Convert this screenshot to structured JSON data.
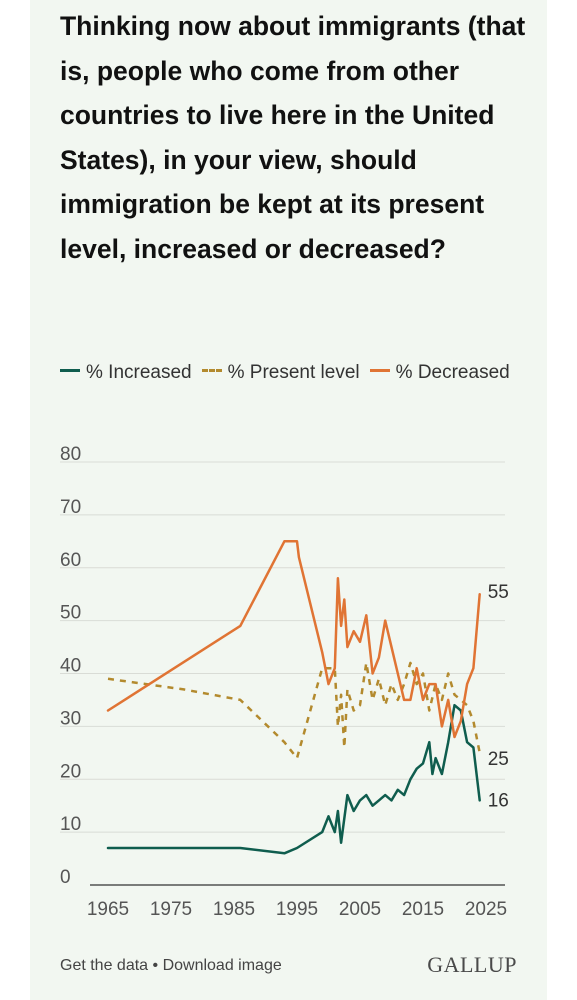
{
  "title": "Thinking now about immigrants (that is, people who come from other countries to live here in the United States), in your view, should immigration be kept at its present level, increased or decreased?",
  "legend": {
    "increased": "% Increased",
    "present": "% Present level",
    "decreased": "% Decreased"
  },
  "footer": {
    "get_data": "Get the data",
    "separator": " • ",
    "download": "Download image",
    "logo": "GALLUP"
  },
  "colors": {
    "increased": "#0f5d4e",
    "present": "#b38a2e",
    "decreased": "#e07434",
    "grid": "#d9dcd6",
    "axis_text": "#555555"
  },
  "chart_data": {
    "type": "line",
    "title": "Thinking now about immigrants (that is, people who come from other countries to live here in the United States), in your view, should immigration be kept at its present level, increased or decreased?",
    "xlabel": "",
    "ylabel": "",
    "xlim": [
      1965,
      2025
    ],
    "ylim": [
      0,
      80
    ],
    "x_ticks": [
      1965,
      1975,
      1985,
      1995,
      2005,
      2015,
      2025
    ],
    "y_ticks": [
      0,
      10,
      20,
      30,
      40,
      50,
      60,
      70,
      80
    ],
    "grid": true,
    "legend_position": "top",
    "end_labels": {
      "decreased": "55",
      "present": "25",
      "increased": "16"
    },
    "series": [
      {
        "name": "% Increased",
        "key": "increased",
        "style": "solid",
        "points": [
          [
            1965,
            7
          ],
          [
            1977,
            7
          ],
          [
            1986,
            7
          ],
          [
            1993,
            6
          ],
          [
            1995,
            7
          ],
          [
            1999,
            10
          ],
          [
            2000,
            13
          ],
          [
            2001,
            10
          ],
          [
            2001.5,
            14
          ],
          [
            2002,
            8
          ],
          [
            2003,
            17
          ],
          [
            2004,
            14
          ],
          [
            2005,
            16
          ],
          [
            2006,
            17
          ],
          [
            2007,
            15
          ],
          [
            2008,
            16
          ],
          [
            2009,
            17
          ],
          [
            2010,
            16
          ],
          [
            2011,
            18
          ],
          [
            2012,
            17
          ],
          [
            2013,
            20
          ],
          [
            2014,
            22
          ],
          [
            2015,
            23
          ],
          [
            2016,
            27
          ],
          [
            2016.5,
            21
          ],
          [
            2017,
            24
          ],
          [
            2018,
            21
          ],
          [
            2019,
            27
          ],
          [
            2020,
            34
          ],
          [
            2021,
            33
          ],
          [
            2022,
            27
          ],
          [
            2023,
            26
          ],
          [
            2024,
            16
          ]
        ]
      },
      {
        "name": "% Present level",
        "key": "present",
        "style": "dashed",
        "points": [
          [
            1965,
            39
          ],
          [
            1977,
            37
          ],
          [
            1986,
            35
          ],
          [
            1993,
            27
          ],
          [
            1995,
            24
          ],
          [
            1999,
            41
          ],
          [
            2000,
            41
          ],
          [
            2001,
            41
          ],
          [
            2001.5,
            30
          ],
          [
            2002,
            36
          ],
          [
            2002.5,
            26
          ],
          [
            2003,
            37
          ],
          [
            2004,
            33
          ],
          [
            2005,
            34
          ],
          [
            2006,
            42
          ],
          [
            2007,
            35
          ],
          [
            2008,
            39
          ],
          [
            2009,
            34
          ],
          [
            2010,
            38
          ],
          [
            2011,
            35
          ],
          [
            2012,
            38
          ],
          [
            2013,
            42
          ],
          [
            2014,
            38
          ],
          [
            2015,
            40
          ],
          [
            2016,
            33
          ],
          [
            2017,
            38
          ],
          [
            2018,
            35
          ],
          [
            2019,
            40
          ],
          [
            2020,
            36
          ],
          [
            2021,
            35
          ],
          [
            2022,
            34
          ],
          [
            2023,
            31
          ],
          [
            2024,
            25
          ]
        ]
      },
      {
        "name": "% Decreased",
        "key": "decreased",
        "style": "solid",
        "points": [
          [
            1965,
            33
          ],
          [
            1986,
            49
          ],
          [
            1993,
            65
          ],
          [
            1995,
            65
          ],
          [
            1995.3,
            62
          ],
          [
            1999,
            44
          ],
          [
            2000,
            38
          ],
          [
            2001,
            41
          ],
          [
            2001.5,
            58
          ],
          [
            2002,
            49
          ],
          [
            2002.5,
            54
          ],
          [
            2003,
            45
          ],
          [
            2004,
            48
          ],
          [
            2005,
            46
          ],
          [
            2006,
            51
          ],
          [
            2007,
            40
          ],
          [
            2008,
            43
          ],
          [
            2009,
            50
          ],
          [
            2010,
            45
          ],
          [
            2011,
            40
          ],
          [
            2012,
            35
          ],
          [
            2013,
            35
          ],
          [
            2014,
            41
          ],
          [
            2015,
            35
          ],
          [
            2016,
            38
          ],
          [
            2017,
            38
          ],
          [
            2018,
            30
          ],
          [
            2019,
            35
          ],
          [
            2020,
            28
          ],
          [
            2021,
            31
          ],
          [
            2022,
            38
          ],
          [
            2023,
            41
          ],
          [
            2024,
            55
          ]
        ]
      }
    ]
  }
}
